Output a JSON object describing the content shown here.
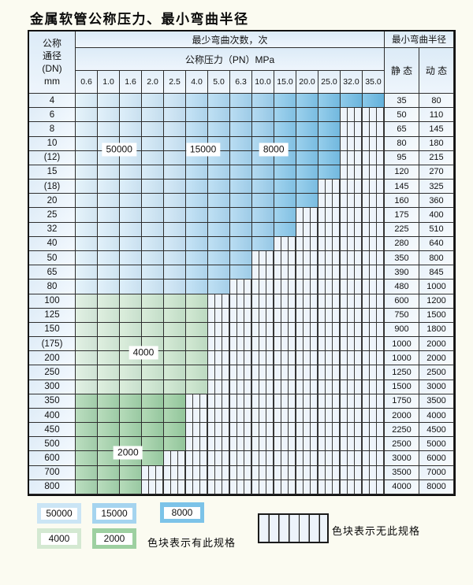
{
  "title": "金属软管公称压力、最小弯曲半径",
  "table": {
    "header": {
      "dn_lines": [
        "公称",
        "通径",
        "(DN)",
        "mm"
      ],
      "bend_cycles": "最少弯曲次数，次",
      "pressure": "公称压力（PN）MPa",
      "min_radius": "最小弯曲半径",
      "static": "静 态",
      "dynamic": "动 态",
      "pressures": [
        "0.6",
        "1.0",
        "1.6",
        "2.0",
        "2.5",
        "4.0",
        "5.0",
        "6.3",
        "10.0",
        "15.0",
        "20.0",
        "25.0",
        "32.0",
        "35.0"
      ]
    },
    "rows": [
      {
        "dn": "4",
        "last": "35.0",
        "static": "35",
        "dynamic": "80"
      },
      {
        "dn": "6",
        "last": "25.0",
        "static": "50",
        "dynamic": "110"
      },
      {
        "dn": "8",
        "last": "25.0",
        "static": "65",
        "dynamic": "145"
      },
      {
        "dn": "10",
        "last": "25.0",
        "static": "80",
        "dynamic": "180"
      },
      {
        "dn": "(12)",
        "last": "25.0",
        "static": "95",
        "dynamic": "215"
      },
      {
        "dn": "15",
        "last": "25.0",
        "static": "120",
        "dynamic": "270"
      },
      {
        "dn": "(18)",
        "last": "20.0",
        "static": "145",
        "dynamic": "325"
      },
      {
        "dn": "20",
        "last": "20.0",
        "static": "160",
        "dynamic": "360"
      },
      {
        "dn": "25",
        "last": "15.0",
        "static": "175",
        "dynamic": "400"
      },
      {
        "dn": "32",
        "last": "15.0",
        "static": "225",
        "dynamic": "510"
      },
      {
        "dn": "40",
        "last": "10.0",
        "static": "280",
        "dynamic": "640"
      },
      {
        "dn": "50",
        "last": "6.3",
        "static": "350",
        "dynamic": "800"
      },
      {
        "dn": "65",
        "last": "6.3",
        "static": "390",
        "dynamic": "845"
      },
      {
        "dn": "80",
        "last": "5.0",
        "static": "480",
        "dynamic": "1000"
      },
      {
        "dn": "100",
        "last": "4.0",
        "static": "600",
        "dynamic": "1200"
      },
      {
        "dn": "125",
        "last": "4.0",
        "static": "750",
        "dynamic": "1500"
      },
      {
        "dn": "150",
        "last": "4.0",
        "static": "900",
        "dynamic": "1800"
      },
      {
        "dn": "(175)",
        "last": "4.0",
        "static": "1000",
        "dynamic": "2000"
      },
      {
        "dn": "200",
        "last": "4.0",
        "static": "1000",
        "dynamic": "2000"
      },
      {
        "dn": "250",
        "last": "4.0",
        "static": "1250",
        "dynamic": "2500"
      },
      {
        "dn": "300",
        "last": "4.0",
        "static": "1500",
        "dynamic": "3000"
      },
      {
        "dn": "350",
        "last": "2.5",
        "static": "1750",
        "dynamic": "3500"
      },
      {
        "dn": "400",
        "last": "2.5",
        "static": "2000",
        "dynamic": "4000"
      },
      {
        "dn": "450",
        "last": "2.5",
        "static": "2250",
        "dynamic": "4500"
      },
      {
        "dn": "500",
        "last": "2.5",
        "static": "2500",
        "dynamic": "5000"
      },
      {
        "dn": "600",
        "last": "2.0",
        "static": "3000",
        "dynamic": "6000"
      },
      {
        "dn": "700",
        "last": "1.6",
        "static": "3500",
        "dynamic": "7000"
      },
      {
        "dn": "800",
        "last": "1.6",
        "static": "4000",
        "dynamic": "8000"
      }
    ]
  },
  "zones": {
    "blue_ramp": [
      "#def0fa",
      "#d9edf9",
      "#d4eaf8",
      "#cfe7f6",
      "#cae4f5",
      "#b6dcf3",
      "#aed8f1",
      "#a6d4ef",
      "#9ed0ed",
      "#88c8ea",
      "#80c4e8",
      "#78c0e6",
      "#70bce4",
      "#68b8e2"
    ],
    "green4000_ramp": [
      "#daeddc",
      "#d6ebd7",
      "#d2e9d3",
      "#cee7cf",
      "#cae5cb",
      "#c6e3c7"
    ],
    "green2000_ramp": [
      "#a9d5ae",
      "#a5d3aa",
      "#a1d1a6",
      "#9dcfa2",
      "#99cd9e",
      "#95cb9a"
    ],
    "striped_bg": "#eef4fb",
    "line_color": "#3c3c3c"
  },
  "zone_labels": [
    {
      "text": "50000",
      "col": 1.9,
      "row": 3.8
    },
    {
      "text": "15000",
      "col": 5.7,
      "row": 3.8
    },
    {
      "text": "8000",
      "col": 8.9,
      "row": 3.8
    },
    {
      "text": "4000",
      "col": 3.0,
      "row": 18.0
    },
    {
      "text": "2000",
      "col": 2.3,
      "row": 25.0
    }
  ],
  "legend": {
    "swatches": [
      {
        "label": "50000",
        "color": "#cbe5f5"
      },
      {
        "label": "15000",
        "color": "#a5d4ef"
      },
      {
        "label": "8000",
        "color": "#7cc3e8"
      },
      {
        "label": "4000",
        "color": "#d4e9d2"
      },
      {
        "label": "2000",
        "color": "#9ed0a1"
      }
    ],
    "has_spec_text": "色块表示有此规格",
    "no_spec_text": "色块表示无此规格"
  }
}
